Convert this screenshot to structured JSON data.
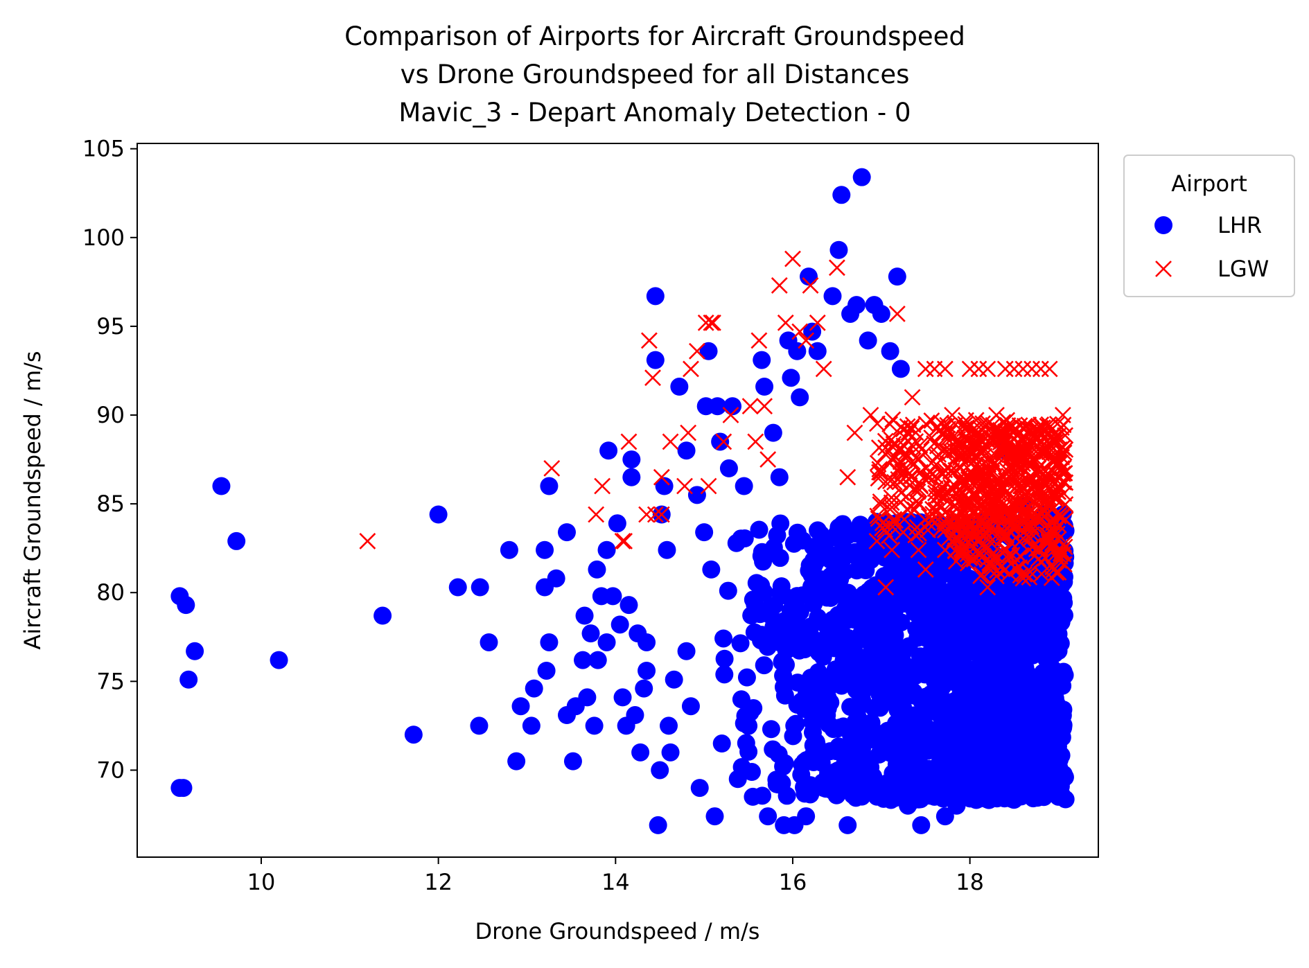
{
  "chart_data": {
    "type": "scatter",
    "title_lines": [
      "Comparison of Airports for Aircraft Groundspeed",
      "vs Drone Groundspeed for all Distances",
      "Mavic_3 - Depart Anomaly Detection - 0"
    ],
    "xlabel": "Drone Groundspeed / m/s",
    "ylabel": "Aircraft Groundspeed / m/s",
    "xlim": [
      8.6,
      19.45
    ],
    "ylim": [
      65.1,
      105.3
    ],
    "x_ticks": [
      10,
      12,
      14,
      16,
      18
    ],
    "y_ticks": [
      70,
      75,
      80,
      85,
      90,
      95,
      100,
      105
    ],
    "grid": false,
    "legend": {
      "title": "Airport",
      "placement": "outside-top-right",
      "entries": [
        "LHR",
        "LGW"
      ]
    },
    "series": [
      {
        "name": "LHR",
        "marker": "circle",
        "color": "#0000ff",
        "points": [
          [
            9.08,
            69.0
          ],
          [
            9.12,
            69.0
          ],
          [
            9.08,
            79.8
          ],
          [
            9.15,
            79.3
          ],
          [
            9.25,
            76.7
          ],
          [
            9.18,
            75.1
          ],
          [
            9.55,
            86.0
          ],
          [
            9.72,
            82.9
          ],
          [
            10.2,
            76.2
          ],
          [
            11.37,
            78.7
          ],
          [
            11.72,
            72.0
          ],
          [
            12.0,
            84.4
          ],
          [
            12.22,
            80.3
          ],
          [
            12.47,
            80.3
          ],
          [
            12.46,
            72.5
          ],
          [
            12.57,
            77.2
          ],
          [
            12.8,
            82.4
          ],
          [
            12.88,
            70.5
          ],
          [
            12.93,
            73.6
          ],
          [
            13.05,
            72.5
          ],
          [
            13.08,
            74.6
          ],
          [
            13.2,
            82.4
          ],
          [
            13.2,
            80.3
          ],
          [
            13.22,
            75.6
          ],
          [
            13.25,
            77.2
          ],
          [
            13.25,
            86.0
          ],
          [
            13.33,
            80.8
          ],
          [
            13.45,
            83.4
          ],
          [
            13.45,
            73.1
          ],
          [
            13.52,
            70.5
          ],
          [
            13.55,
            73.6
          ],
          [
            13.63,
            76.2
          ],
          [
            13.65,
            78.7
          ],
          [
            13.68,
            74.1
          ],
          [
            13.72,
            77.7
          ],
          [
            13.76,
            72.5
          ],
          [
            13.79,
            81.3
          ],
          [
            13.8,
            76.2
          ],
          [
            13.84,
            79.8
          ],
          [
            13.9,
            82.4
          ],
          [
            13.9,
            77.2
          ],
          [
            13.92,
            88.0
          ],
          [
            13.97,
            79.8
          ],
          [
            14.02,
            83.9
          ],
          [
            14.05,
            78.2
          ],
          [
            14.08,
            74.1
          ],
          [
            14.12,
            72.5
          ],
          [
            14.15,
            79.3
          ],
          [
            14.18,
            87.5
          ],
          [
            14.18,
            86.5
          ],
          [
            14.22,
            73.1
          ],
          [
            14.25,
            77.7
          ],
          [
            14.28,
            71.0
          ],
          [
            14.32,
            74.6
          ],
          [
            14.35,
            75.6
          ],
          [
            14.35,
            77.2
          ],
          [
            14.45,
            96.7
          ],
          [
            14.45,
            93.1
          ],
          [
            14.48,
            66.9
          ],
          [
            14.5,
            70.0
          ],
          [
            14.52,
            84.4
          ],
          [
            14.55,
            86.0
          ],
          [
            14.58,
            82.4
          ],
          [
            14.6,
            72.5
          ],
          [
            14.62,
            71.0
          ],
          [
            14.66,
            75.1
          ],
          [
            14.72,
            91.6
          ],
          [
            14.8,
            88.0
          ],
          [
            14.8,
            76.7
          ],
          [
            14.85,
            73.6
          ],
          [
            14.92,
            85.5
          ],
          [
            14.95,
            69.0
          ],
          [
            15.0,
            83.4
          ],
          [
            15.02,
            90.5
          ],
          [
            15.05,
            93.6
          ],
          [
            15.08,
            81.3
          ],
          [
            15.12,
            67.4
          ],
          [
            15.15,
            90.5
          ],
          [
            15.18,
            88.5
          ],
          [
            15.2,
            71.5
          ],
          [
            15.28,
            87.0
          ],
          [
            15.32,
            90.5
          ],
          [
            15.38,
            69.5
          ],
          [
            15.45,
            86.0
          ],
          [
            15.55,
            68.5
          ],
          [
            15.65,
            93.1
          ],
          [
            15.68,
            91.6
          ],
          [
            15.72,
            67.4
          ],
          [
            15.78,
            89.0
          ],
          [
            15.85,
            86.5
          ],
          [
            15.9,
            66.9
          ],
          [
            15.95,
            94.2
          ],
          [
            15.98,
            92.1
          ],
          [
            16.02,
            66.9
          ],
          [
            16.05,
            93.6
          ],
          [
            16.08,
            91.0
          ],
          [
            16.15,
            67.4
          ],
          [
            16.18,
            97.8
          ],
          [
            16.22,
            94.7
          ],
          [
            16.28,
            93.6
          ],
          [
            16.35,
            69.0
          ],
          [
            16.45,
            96.7
          ],
          [
            16.52,
            99.3
          ],
          [
            16.55,
            102.4
          ],
          [
            16.62,
            66.9
          ],
          [
            16.65,
            95.7
          ],
          [
            16.72,
            96.2
          ],
          [
            16.78,
            103.4
          ],
          [
            16.85,
            94.2
          ],
          [
            16.92,
            96.2
          ],
          [
            17.0,
            95.7
          ],
          [
            17.1,
            93.6
          ],
          [
            17.18,
            97.8
          ],
          [
            17.22,
            92.6
          ],
          [
            17.3,
            68.0
          ],
          [
            17.45,
            66.9
          ],
          [
            17.6,
            68.5
          ],
          [
            17.72,
            67.4
          ],
          [
            17.85,
            68.0
          ],
          [
            18.0,
            68.5
          ],
          [
            18.25,
            68.5
          ],
          [
            18.5,
            68.5
          ],
          [
            18.75,
            68.5
          ],
          [
            19.0,
            68.5
          ],
          [
            18.4,
            88.0
          ],
          [
            18.6,
            84.9
          ],
          [
            18.85,
            84.4
          ],
          [
            19.05,
            84.4
          ],
          [
            18.95,
            82.4
          ],
          [
            18.75,
            82.4
          ]
        ]
      },
      {
        "name": "LGW",
        "marker": "x",
        "color": "#ff0000",
        "points": [
          [
            11.2,
            82.9
          ],
          [
            13.28,
            87.0
          ],
          [
            13.78,
            84.4
          ],
          [
            13.85,
            86.0
          ],
          [
            14.08,
            82.9
          ],
          [
            14.15,
            88.5
          ],
          [
            14.1,
            82.9
          ],
          [
            14.35,
            84.4
          ],
          [
            14.38,
            94.2
          ],
          [
            14.42,
            92.1
          ],
          [
            14.45,
            84.4
          ],
          [
            14.52,
            84.4
          ],
          [
            14.52,
            86.5
          ],
          [
            14.62,
            88.5
          ],
          [
            14.78,
            86.0
          ],
          [
            14.82,
            89.0
          ],
          [
            14.85,
            92.6
          ],
          [
            14.92,
            93.6
          ],
          [
            15.02,
            95.2
          ],
          [
            15.08,
            95.2
          ],
          [
            15.1,
            95.2
          ],
          [
            15.05,
            86.0
          ],
          [
            15.22,
            88.5
          ],
          [
            15.3,
            90.0
          ],
          [
            15.52,
            90.5
          ],
          [
            15.58,
            88.5
          ],
          [
            15.62,
            94.2
          ],
          [
            15.68,
            90.5
          ],
          [
            15.72,
            87.5
          ],
          [
            15.85,
            97.3
          ],
          [
            15.92,
            95.2
          ],
          [
            16.0,
            98.8
          ],
          [
            16.08,
            94.7
          ],
          [
            16.15,
            94.2
          ],
          [
            16.2,
            97.3
          ],
          [
            16.28,
            95.2
          ],
          [
            16.35,
            92.6
          ],
          [
            16.5,
            98.3
          ],
          [
            16.62,
            86.5
          ],
          [
            16.7,
            89.0
          ],
          [
            16.88,
            90.0
          ],
          [
            16.95,
            82.9
          ],
          [
            17.05,
            80.3
          ],
          [
            17.12,
            82.4
          ],
          [
            17.18,
            95.7
          ],
          [
            17.35,
            91.0
          ],
          [
            17.42,
            82.4
          ],
          [
            17.5,
            92.6
          ],
          [
            17.5,
            81.3
          ],
          [
            17.6,
            92.6
          ],
          [
            17.72,
            92.6
          ],
          [
            17.8,
            90.0
          ],
          [
            17.72,
            82.4
          ],
          [
            17.95,
            85.5
          ],
          [
            18.0,
            92.6
          ],
          [
            18.1,
            92.6
          ],
          [
            18.2,
            92.6
          ],
          [
            18.3,
            90.0
          ],
          [
            18.4,
            92.6
          ],
          [
            18.5,
            92.6
          ],
          [
            18.6,
            92.6
          ],
          [
            18.7,
            92.6
          ],
          [
            18.8,
            92.6
          ],
          [
            18.9,
            92.6
          ],
          [
            18.2,
            80.3
          ],
          [
            18.4,
            81.3
          ],
          [
            18.6,
            80.8
          ],
          [
            18.95,
            81.3
          ],
          [
            19.05,
            90.0
          ]
        ],
        "clusters": [
          {
            "x_range": [
              16.95,
              19.08
            ],
            "y_range": [
              83.0,
              89.8
            ]
          },
          {
            "x_range": [
              17.8,
              19.08
            ],
            "y_range": [
              80.8,
              89.5
            ]
          }
        ]
      }
    ],
    "LHR_dense_region": {
      "x_range": [
        15.2,
        19.08
      ],
      "y_range": [
        68.3,
        84.0
      ]
    }
  }
}
